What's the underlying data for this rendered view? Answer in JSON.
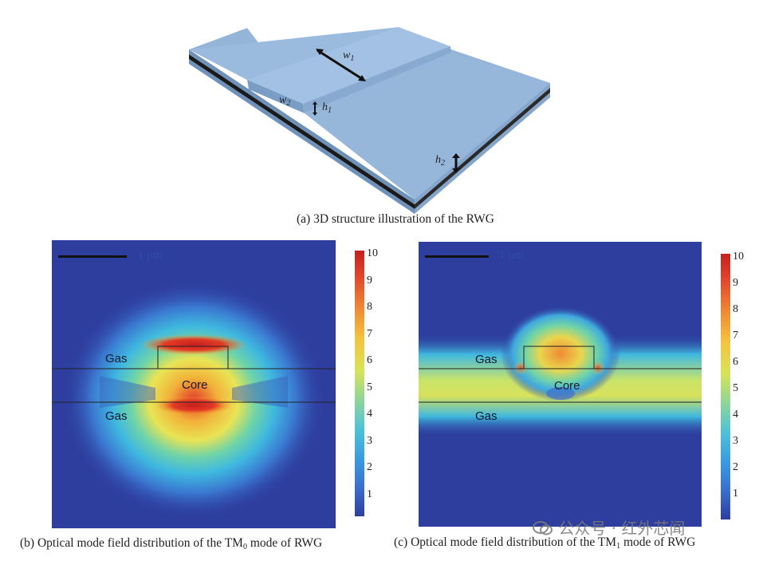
{
  "figure": {
    "panel_a": {
      "caption": "(a) 3D structure illustration of the RWG",
      "labels": {
        "w1": "w",
        "w1_sub": "1",
        "w2": "w",
        "w2_sub": "2",
        "h1": "h",
        "h1_sub": "1",
        "h2": "h",
        "h2_sub": "2"
      }
    },
    "panel_b": {
      "caption_pre": "(b) Optical mode field distribution of the TM",
      "caption_sub": "0",
      "caption_post": " mode of RWG",
      "scale_label": "1 μm",
      "gas_top": "Gas",
      "core": "Core",
      "gas_bottom": "Gas",
      "colorbar_ticks": [
        "10",
        "9",
        "8",
        "7",
        "6",
        "5",
        "4",
        "3",
        "2",
        "1"
      ]
    },
    "panel_c": {
      "caption_pre": "(c) Optical mode field distribution of the TM",
      "caption_sub": "1",
      "caption_post": " mode of RWG",
      "scale_label": "1 μm",
      "gas_top": "Gas",
      "core": "Core",
      "gas_bottom": "Gas",
      "colorbar_ticks": [
        "10",
        "9",
        "8",
        "7",
        "6",
        "5",
        "4",
        "3",
        "2",
        "1"
      ]
    }
  },
  "watermark": {
    "text": "公众号 · 红外芯闻"
  }
}
